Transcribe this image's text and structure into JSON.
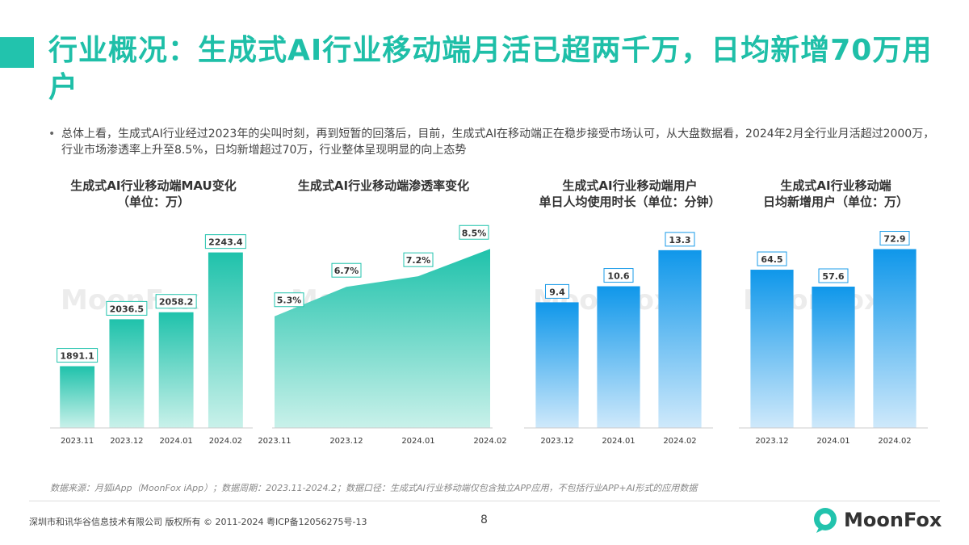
{
  "title": "行业概况：生成式AI行业移动端月活已超两千万，日均新增70万用户",
  "bullet": "总体上看，生成式AI行业经过2023年的尖叫时刻，再到短暂的回落后，目前，生成式AI在移动端正在稳步接受市场认可，从大盘数据看，2024年2月全行业月活超过2000万，行业市场渗透率上升至8.5%，日均新增超过70万，行业整体呈现明显的向上态势",
  "watermark": "MoonFox",
  "colors": {
    "teal": "#22c3ad",
    "blue": "#1a9be8"
  },
  "chart_data": [
    {
      "type": "bar",
      "title": "生成式AI行业移动端MAU变化\n（单位：万）",
      "categories": [
        "2023.11",
        "2023.12",
        "2024.01",
        "2024.02"
      ],
      "values": [
        1891.1,
        2036.5,
        2058.2,
        2243.4
      ],
      "labels": [
        "1891.1",
        "2036.5",
        "2058.2",
        "2243.4"
      ],
      "ylim": [
        1700,
        2300
      ],
      "color": "#22c3ad"
    },
    {
      "type": "area",
      "title": "生成式AI行业移动端渗透率变化",
      "categories": [
        "2023.11",
        "2023.12",
        "2024.01",
        "2024.02"
      ],
      "values": [
        5.3,
        6.7,
        7.2,
        8.5
      ],
      "labels": [
        "5.3%",
        "6.7%",
        "7.2%",
        "8.5%"
      ],
      "ylim": [
        0,
        9.2
      ],
      "color": "#22c3ad"
    },
    {
      "type": "bar",
      "title": "生成式AI行业移动端用户\n单日人均使用时长（单位：分钟）",
      "categories": [
        "2023.12",
        "2024.01",
        "2024.02"
      ],
      "values": [
        9.4,
        10.6,
        13.3
      ],
      "labels": [
        "9.4",
        "10.6",
        "13.3"
      ],
      "ylim": [
        0,
        14.5
      ],
      "color": "#1a9be8"
    },
    {
      "type": "bar",
      "title": "生成式AI行业移动端\n日均新增用户（单位：万）",
      "categories": [
        "2023.12",
        "2024.01",
        "2024.02"
      ],
      "values": [
        64.5,
        57.6,
        72.9
      ],
      "labels": [
        "64.5",
        "57.6",
        "72.9"
      ],
      "ylim": [
        0,
        79
      ],
      "color": "#1a9be8"
    }
  ],
  "source": "数据来源：月狐iApp（MoonFox iApp）；数据周期：2023.11-2024.2；数据口径：生成式AI行业移动端仅包含独立APP应用，不包括行业APP+AI形式的应用数据",
  "footer": "深圳市和讯华谷信息技术有限公司 版权所有 © 2011-2024 粤ICP备12056275号-13",
  "page": "8",
  "logo": "MoonFox"
}
